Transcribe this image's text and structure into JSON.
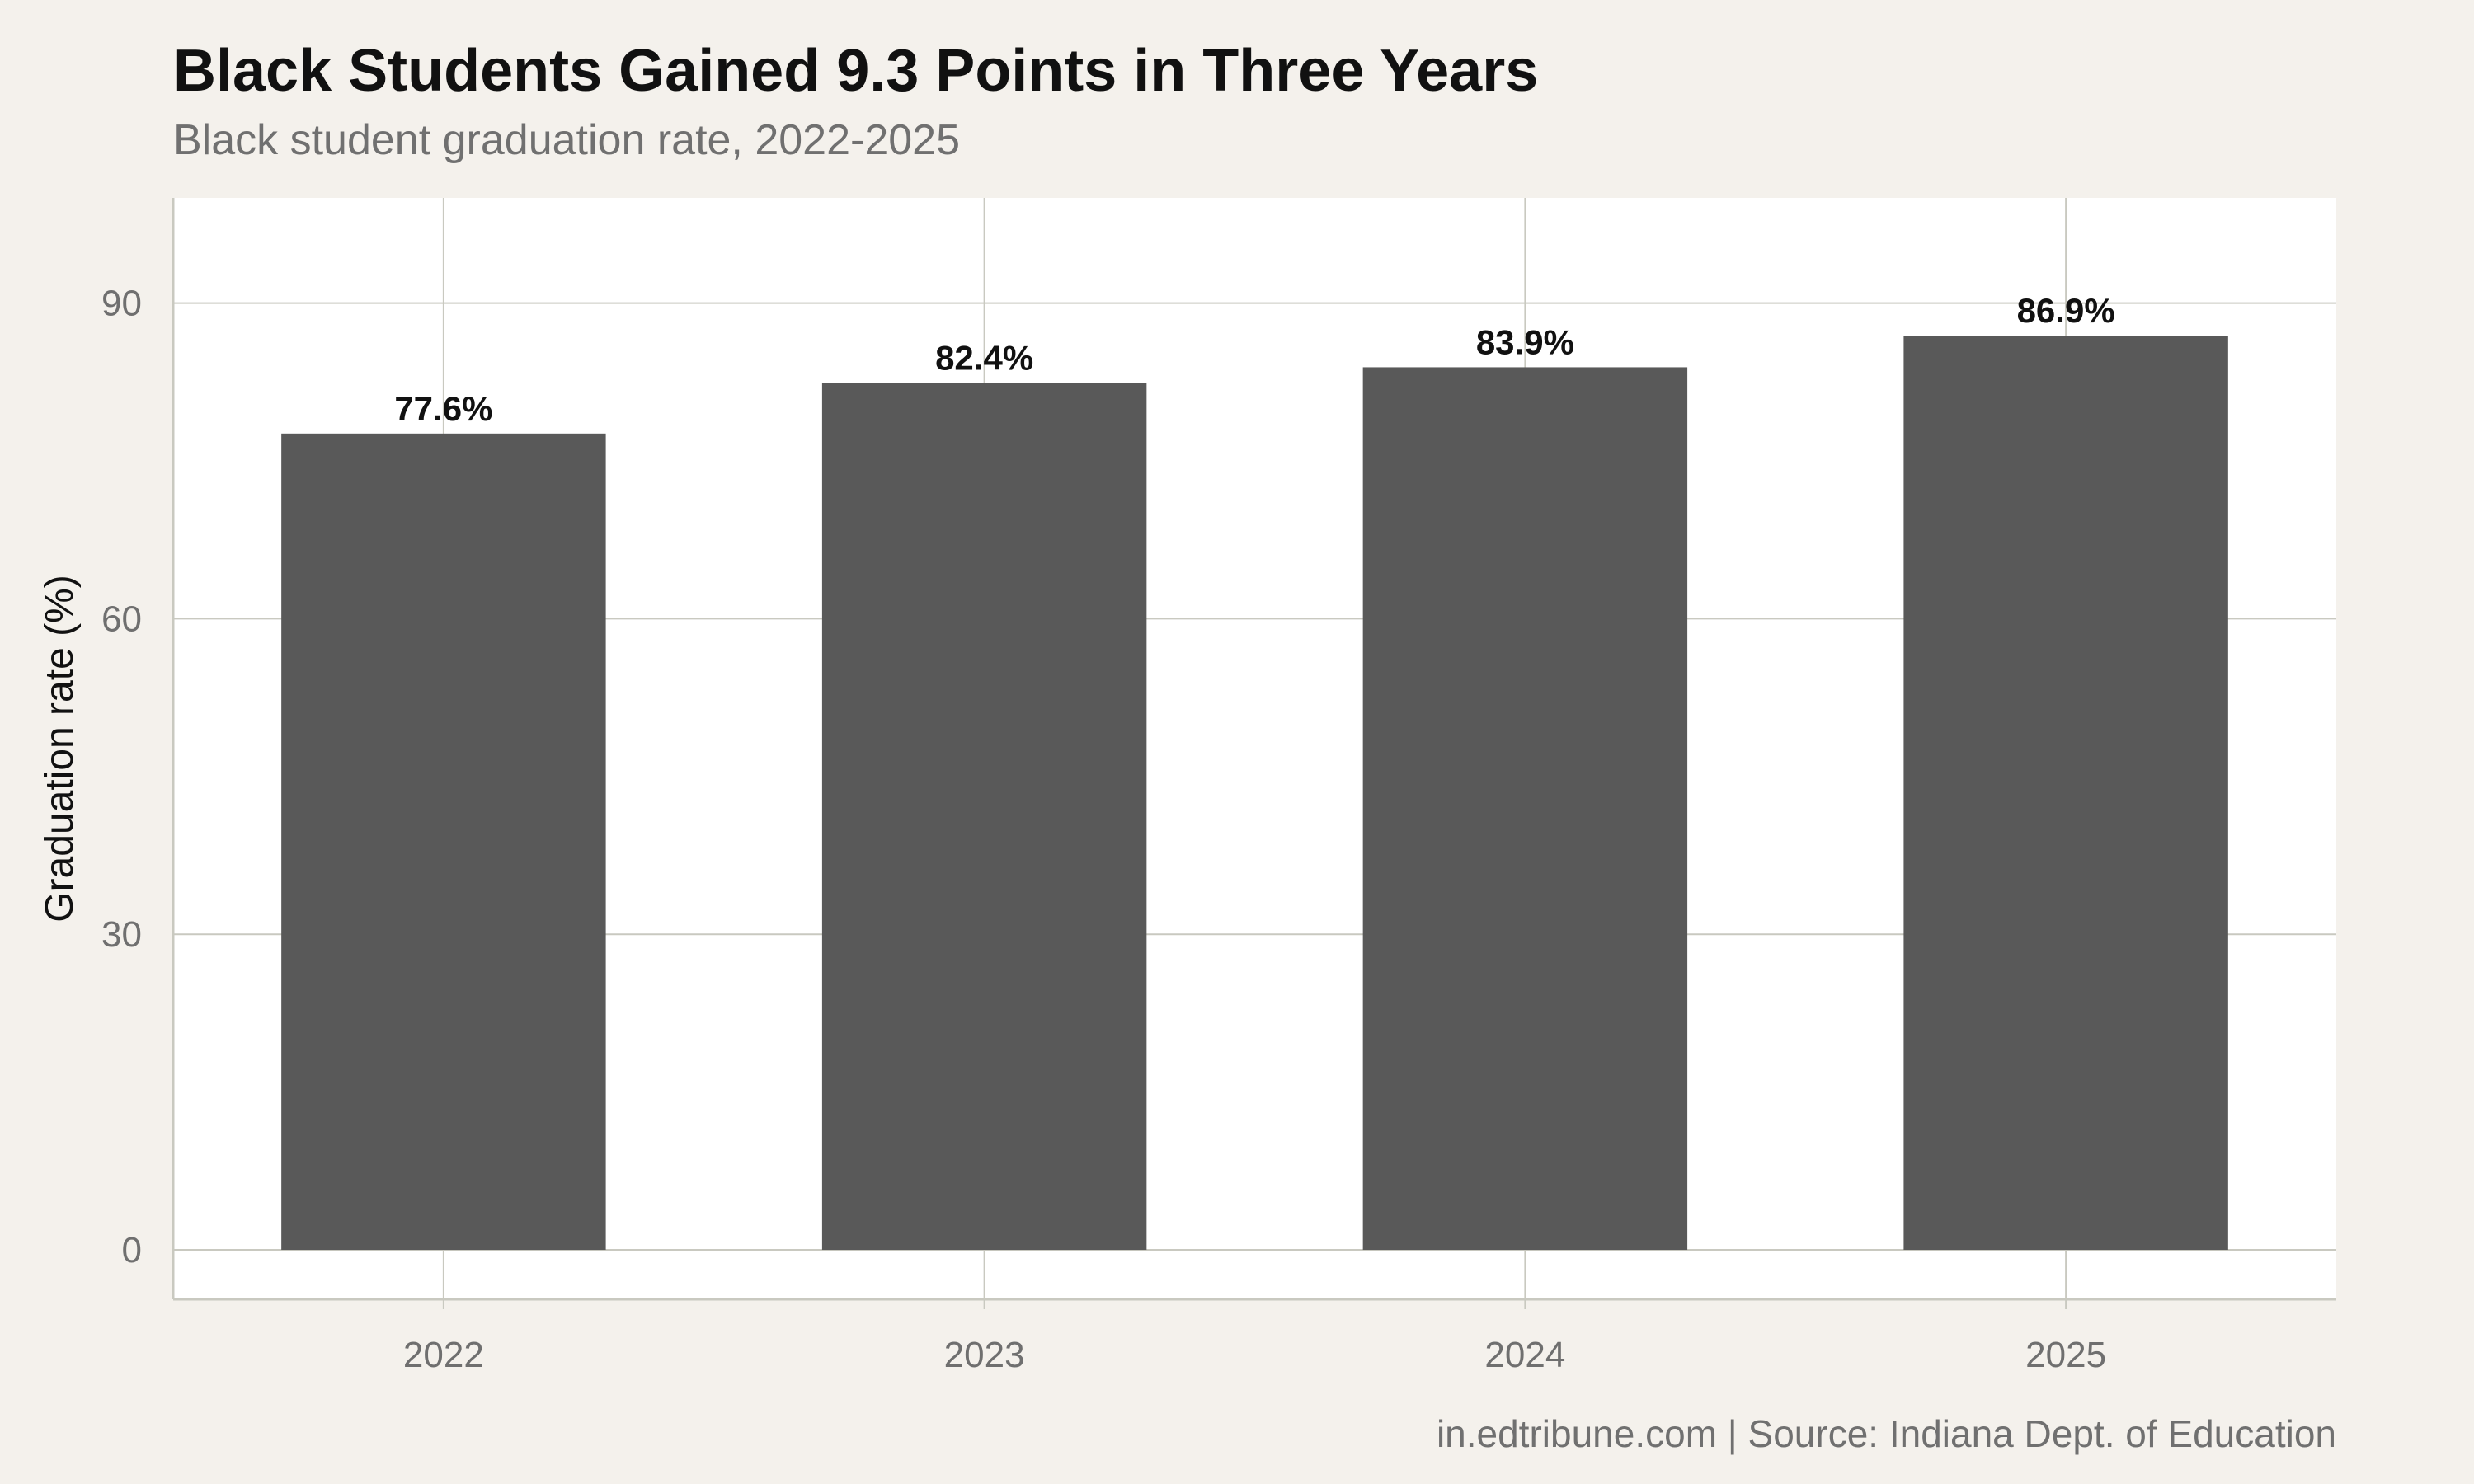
{
  "chart_data": {
    "type": "bar",
    "title": "Black Students Gained 9.3 Points in Three Years",
    "subtitle": "Black student graduation rate, 2022-2025",
    "xlabel": "",
    "ylabel": "Graduation rate (%)",
    "categories": [
      "2022",
      "2023",
      "2024",
      "2025"
    ],
    "values": [
      77.6,
      82.4,
      83.9,
      86.9
    ],
    "data_labels": [
      "77.6%",
      "82.4%",
      "83.9%",
      "86.9%"
    ],
    "ylim": [
      -4.7,
      100
    ],
    "yticks": [
      0,
      30,
      60,
      90
    ],
    "ytick_labels": [
      "0",
      "30",
      "60",
      "90"
    ],
    "grid": true,
    "legend": "none",
    "caption": "in.edtribune.com | Source: Indiana Dept. of Education",
    "colors": {
      "background": "#f4f1ec",
      "panel": "#ffffff",
      "bar": "#595959",
      "grid": "#c9c9c0"
    }
  }
}
